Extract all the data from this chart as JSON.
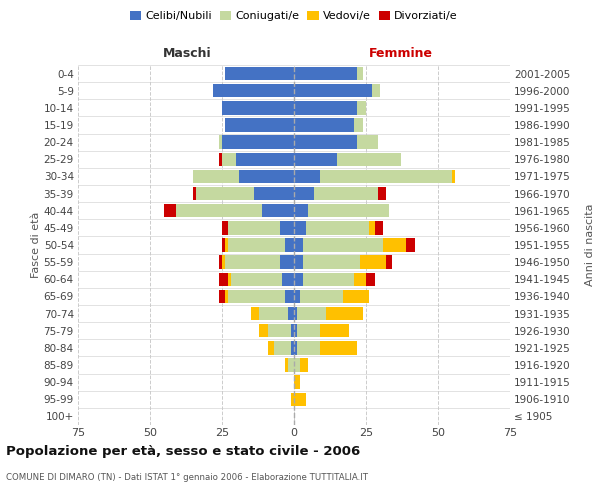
{
  "age_groups": [
    "100+",
    "95-99",
    "90-94",
    "85-89",
    "80-84",
    "75-79",
    "70-74",
    "65-69",
    "60-64",
    "55-59",
    "50-54",
    "45-49",
    "40-44",
    "35-39",
    "30-34",
    "25-29",
    "20-24",
    "15-19",
    "10-14",
    "5-9",
    "0-4"
  ],
  "birth_years": [
    "≤ 1905",
    "1906-1910",
    "1911-1915",
    "1916-1920",
    "1921-1925",
    "1926-1930",
    "1931-1935",
    "1936-1940",
    "1941-1945",
    "1946-1950",
    "1951-1955",
    "1956-1960",
    "1961-1965",
    "1966-1970",
    "1971-1975",
    "1976-1980",
    "1981-1985",
    "1986-1990",
    "1991-1995",
    "1996-2000",
    "2001-2005"
  ],
  "males": {
    "celibi": [
      0,
      0,
      0,
      0,
      1,
      1,
      2,
      3,
      4,
      5,
      3,
      5,
      11,
      14,
      19,
      20,
      25,
      24,
      25,
      28,
      24
    ],
    "coniugati": [
      0,
      0,
      0,
      2,
      6,
      8,
      10,
      20,
      18,
      19,
      20,
      18,
      30,
      20,
      16,
      5,
      1,
      0,
      0,
      0,
      0
    ],
    "vedovi": [
      0,
      1,
      0,
      1,
      2,
      3,
      3,
      1,
      1,
      1,
      1,
      0,
      0,
      0,
      0,
      0,
      0,
      0,
      0,
      0,
      0
    ],
    "divorziati": [
      0,
      0,
      0,
      0,
      0,
      0,
      0,
      2,
      3,
      1,
      1,
      2,
      4,
      1,
      0,
      1,
      0,
      0,
      0,
      0,
      0
    ]
  },
  "females": {
    "nubili": [
      0,
      0,
      0,
      0,
      1,
      1,
      1,
      2,
      3,
      3,
      3,
      4,
      5,
      7,
      9,
      15,
      22,
      21,
      22,
      27,
      22
    ],
    "coniugate": [
      0,
      0,
      0,
      2,
      8,
      8,
      10,
      15,
      18,
      20,
      28,
      22,
      28,
      22,
      46,
      22,
      7,
      3,
      3,
      3,
      2
    ],
    "vedove": [
      0,
      4,
      2,
      3,
      13,
      10,
      13,
      9,
      4,
      9,
      8,
      2,
      0,
      0,
      1,
      0,
      0,
      0,
      0,
      0,
      0
    ],
    "divorziate": [
      0,
      0,
      0,
      0,
      0,
      0,
      0,
      0,
      3,
      2,
      3,
      3,
      0,
      3,
      0,
      0,
      0,
      0,
      0,
      0,
      0
    ]
  },
  "colors": {
    "celibi_nubili": "#4472c4",
    "coniugati": "#c5d9a0",
    "vedovi": "#ffc000",
    "divorziati": "#cc0000"
  },
  "xlim": 75,
  "title": "Popolazione per età, sesso e stato civile - 2006",
  "subtitle": "COMUNE DI DIMARO (TN) - Dati ISTAT 1° gennaio 2006 - Elaborazione TUTTITALIA.IT",
  "ylabel_left": "Fasce di età",
  "ylabel_right": "Anni di nascita",
  "xlabel_left": "Maschi",
  "xlabel_right": "Femmine",
  "bg_color": "#ffffff",
  "grid_color": "#cccccc"
}
